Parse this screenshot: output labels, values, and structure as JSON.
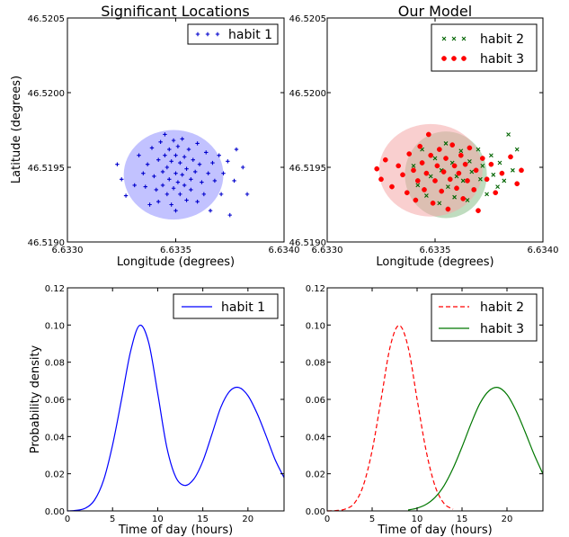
{
  "chart_data": [
    {
      "type": "scatter",
      "title": "Significant Locations",
      "xlabel": "Longitude (degrees)",
      "ylabel": "Latitude (degrees)",
      "xlim": [
        6.633,
        6.634
      ],
      "ylim": [
        46.519,
        46.5205
      ],
      "xticks": [
        "6.6330",
        "6.6335",
        "6.6340"
      ],
      "yticks": [
        "46.5190",
        "46.5195",
        "46.5200",
        "46.5205"
      ],
      "legend_position": "top-right",
      "series": [
        {
          "name": "habit 1",
          "marker": "plus",
          "color": "#0000cc",
          "ellipse": {
            "cx": 6.63349,
            "cy": 46.51945,
            "rx": 0.00023,
            "ry": 0.0003,
            "fill": "#8f8fff"
          },
          "points": [
            [
              6.63323,
              46.51952
            ],
            [
              6.63325,
              46.51942
            ],
            [
              6.63327,
              46.51931
            ],
            [
              6.63331,
              46.51938
            ],
            [
              6.63333,
              46.51958
            ],
            [
              6.63335,
              46.51946
            ],
            [
              6.63336,
              46.51937
            ],
            [
              6.63337,
              46.51952
            ],
            [
              6.63338,
              46.51925
            ],
            [
              6.63339,
              46.51963
            ],
            [
              6.6334,
              46.51944
            ],
            [
              6.63341,
              46.51935
            ],
            [
              6.63342,
              46.51955
            ],
            [
              6.63342,
              46.51927
            ],
            [
              6.63343,
              46.51967
            ],
            [
              6.63344,
              46.51947
            ],
            [
              6.63344,
              46.51938
            ],
            [
              6.63345,
              46.51958
            ],
            [
              6.63345,
              46.51972
            ],
            [
              6.63346,
              46.51932
            ],
            [
              6.63346,
              46.5195
            ],
            [
              6.63347,
              46.51942
            ],
            [
              6.63347,
              46.51962
            ],
            [
              6.63348,
              46.51925
            ],
            [
              6.63348,
              46.51954
            ],
            [
              6.63349,
              46.51968
            ],
            [
              6.63349,
              46.51936
            ],
            [
              6.6335,
              46.51946
            ],
            [
              6.6335,
              46.51958
            ],
            [
              6.6335,
              46.51921
            ],
            [
              6.63351,
              46.5194
            ],
            [
              6.63351,
              46.51964
            ],
            [
              6.63352,
              46.51953
            ],
            [
              6.63352,
              46.51932
            ],
            [
              6.63353,
              46.51945
            ],
            [
              6.63353,
              46.51969
            ],
            [
              6.63354,
              46.51938
            ],
            [
              6.63354,
              46.51957
            ],
            [
              6.63355,
              46.51928
            ],
            [
              6.63355,
              46.51949
            ],
            [
              6.63356,
              46.51962
            ],
            [
              6.63357,
              46.51942
            ],
            [
              6.63357,
              46.51935
            ],
            [
              6.63358,
              46.51955
            ],
            [
              6.63359,
              46.51947
            ],
            [
              6.6336,
              46.51927
            ],
            [
              6.6336,
              46.51966
            ],
            [
              6.63361,
              46.51952
            ],
            [
              6.63362,
              46.5194
            ],
            [
              6.63363,
              46.51932
            ],
            [
              6.63364,
              46.5196
            ],
            [
              6.63365,
              46.51946
            ],
            [
              6.63366,
              46.51921
            ],
            [
              6.63367,
              46.51953
            ],
            [
              6.63368,
              46.51941
            ],
            [
              6.6337,
              46.51958
            ],
            [
              6.63371,
              46.51932
            ],
            [
              6.63372,
              46.51946
            ],
            [
              6.63374,
              46.51954
            ],
            [
              6.63375,
              46.51918
            ],
            [
              6.63377,
              46.51941
            ],
            [
              6.63378,
              46.51962
            ],
            [
              6.63381,
              46.5195
            ],
            [
              6.63383,
              46.51932
            ]
          ]
        }
      ]
    },
    {
      "type": "scatter",
      "title": "Our Model",
      "xlabel": "Longitude (degrees)",
      "ylabel": "",
      "xlim": [
        6.633,
        6.634
      ],
      "ylim": [
        46.519,
        46.5205
      ],
      "xticks": [
        "6.6330",
        "6.6335",
        "6.6340"
      ],
      "yticks": [
        "46.5190",
        "46.5195",
        "46.5200",
        "46.5205"
      ],
      "legend_position": "top-right",
      "series": [
        {
          "name": "habit 2",
          "marker": "x",
          "color": "#006400",
          "ellipse": {
            "cx": 6.63355,
            "cy": 46.51945,
            "rx": 0.00019,
            "ry": 0.00029,
            "fill": "#8bbf8b"
          },
          "points": [
            [
              6.6334,
              46.51951
            ],
            [
              6.63342,
              46.51938
            ],
            [
              6.63344,
              46.51962
            ],
            [
              6.63346,
              46.51931
            ],
            [
              6.63348,
              46.51944
            ],
            [
              6.6335,
              46.51956
            ],
            [
              6.63352,
              46.51926
            ],
            [
              6.63353,
              46.51948
            ],
            [
              6.63355,
              46.51966
            ],
            [
              6.63356,
              46.51937
            ],
            [
              6.63358,
              46.51953
            ],
            [
              6.63359,
              46.5193
            ],
            [
              6.6336,
              46.51944
            ],
            [
              6.63362,
              46.51961
            ],
            [
              6.63363,
              46.51941
            ],
            [
              6.63365,
              46.51928
            ],
            [
              6.63366,
              46.51954
            ],
            [
              6.63367,
              46.51947
            ],
            [
              6.63368,
              46.51935
            ],
            [
              6.6337,
              46.51962
            ],
            [
              6.63371,
              46.51942
            ],
            [
              6.63372,
              46.51951
            ],
            [
              6.63374,
              46.51932
            ],
            [
              6.63376,
              46.51958
            ],
            [
              6.63377,
              46.51945
            ],
            [
              6.63379,
              46.51937
            ],
            [
              6.6338,
              46.51953
            ],
            [
              6.63382,
              46.51941
            ],
            [
              6.63384,
              46.51972
            ],
            [
              6.63386,
              46.51948
            ],
            [
              6.63388,
              46.51962
            ]
          ]
        },
        {
          "name": "habit 3",
          "marker": "circle",
          "color": "#ff0000",
          "ellipse": {
            "cx": 6.63348,
            "cy": 46.51948,
            "rx": 0.00024,
            "ry": 0.00031,
            "fill": "#f4a7a7"
          },
          "points": [
            [
              6.63323,
              46.51949
            ],
            [
              6.63325,
              46.51942
            ],
            [
              6.63327,
              46.51955
            ],
            [
              6.6333,
              46.51937
            ],
            [
              6.63333,
              46.51951
            ],
            [
              6.63335,
              46.51945
            ],
            [
              6.63337,
              46.51933
            ],
            [
              6.63338,
              46.51959
            ],
            [
              6.6334,
              46.51948
            ],
            [
              6.63341,
              46.51928
            ],
            [
              6.63342,
              46.51941
            ],
            [
              6.63343,
              46.51964
            ],
            [
              6.63344,
              46.51953
            ],
            [
              6.63345,
              46.51935
            ],
            [
              6.63346,
              46.51946
            ],
            [
              6.63347,
              46.51972
            ],
            [
              6.63348,
              46.51958
            ],
            [
              6.63349,
              46.51926
            ],
            [
              6.6335,
              46.51941
            ],
            [
              6.63351,
              46.51951
            ],
            [
              6.63352,
              46.51962
            ],
            [
              6.63353,
              46.51934
            ],
            [
              6.63354,
              46.51947
            ],
            [
              6.63355,
              46.51956
            ],
            [
              6.63356,
              46.51922
            ],
            [
              6.63357,
              46.51942
            ],
            [
              6.63358,
              46.51965
            ],
            [
              6.63359,
              46.51951
            ],
            [
              6.6336,
              46.51936
            ],
            [
              6.63361,
              46.51946
            ],
            [
              6.63362,
              46.51958
            ],
            [
              6.63363,
              46.51929
            ],
            [
              6.63364,
              46.51952
            ],
            [
              6.63365,
              46.51941
            ],
            [
              6.63366,
              46.51963
            ],
            [
              6.63368,
              46.51935
            ],
            [
              6.63369,
              46.51948
            ],
            [
              6.6337,
              46.51921
            ],
            [
              6.63372,
              46.51956
            ],
            [
              6.63374,
              46.51942
            ],
            [
              6.63376,
              46.51952
            ],
            [
              6.63378,
              46.51933
            ],
            [
              6.63381,
              46.51946
            ],
            [
              6.63385,
              46.51957
            ],
            [
              6.63388,
              46.51939
            ],
            [
              6.6339,
              46.51948
            ]
          ]
        }
      ]
    },
    {
      "type": "line",
      "title": "",
      "xlabel": "Time of day (hours)",
      "ylabel": "Probability density",
      "xlim": [
        0,
        24
      ],
      "ylim": [
        0,
        0.12
      ],
      "xticks": [
        "0",
        "5",
        "10",
        "15",
        "20"
      ],
      "yticks": [
        "0.00",
        "0.02",
        "0.04",
        "0.06",
        "0.08",
        "0.10",
        "0.12"
      ],
      "legend_position": "top-right",
      "series": [
        {
          "name": "habit 1",
          "color": "#0000ff",
          "dash": "solid",
          "x": [
            0,
            1,
            2,
            3,
            4,
            5,
            6,
            7,
            8,
            9,
            10,
            11,
            12,
            13,
            14,
            15,
            16,
            17,
            18,
            19,
            20,
            21,
            22,
            23,
            24
          ],
          "y": [
            0.0,
            0.0003,
            0.0015,
            0.0058,
            0.0164,
            0.0354,
            0.0601,
            0.0859,
            0.0998,
            0.0906,
            0.0634,
            0.0345,
            0.0182,
            0.0137,
            0.0171,
            0.0267,
            0.0411,
            0.0558,
            0.0645,
            0.0664,
            0.062,
            0.0526,
            0.0405,
            0.0277,
            0.0179
          ]
        }
      ]
    },
    {
      "type": "line",
      "title": "",
      "xlabel": "Time of day (hours)",
      "ylabel": "",
      "xlim": [
        0,
        24
      ],
      "ylim": [
        0,
        0.12
      ],
      "xticks": [
        "0",
        "5",
        "10",
        "15",
        "20"
      ],
      "yticks": [
        "0.00",
        "0.02",
        "0.04",
        "0.06",
        "0.08",
        "0.10",
        "0.12"
      ],
      "legend_position": "top-right",
      "series": [
        {
          "name": "habit 2",
          "color": "#ff0000",
          "dash": "dashed",
          "x": [
            0,
            1,
            2,
            3,
            4,
            5,
            6,
            7,
            8,
            9,
            10,
            11,
            12,
            13,
            14
          ],
          "y": [
            0.0,
            0.0002,
            0.001,
            0.004,
            0.0134,
            0.0325,
            0.0601,
            0.0882,
            0.0998,
            0.0882,
            0.0601,
            0.0325,
            0.0134,
            0.004,
            0.0009
          ]
        },
        {
          "name": "habit 3",
          "color": "#007700",
          "dash": "solid",
          "x": [
            9,
            10,
            11,
            12,
            13,
            14,
            15,
            16,
            17,
            18,
            19,
            20,
            21,
            22,
            23,
            24
          ],
          "y": [
            0.0005,
            0.0015,
            0.0035,
            0.0073,
            0.0136,
            0.0229,
            0.0344,
            0.0469,
            0.0579,
            0.0646,
            0.0664,
            0.0626,
            0.054,
            0.0427,
            0.0306,
            0.0199
          ]
        }
      ]
    }
  ]
}
